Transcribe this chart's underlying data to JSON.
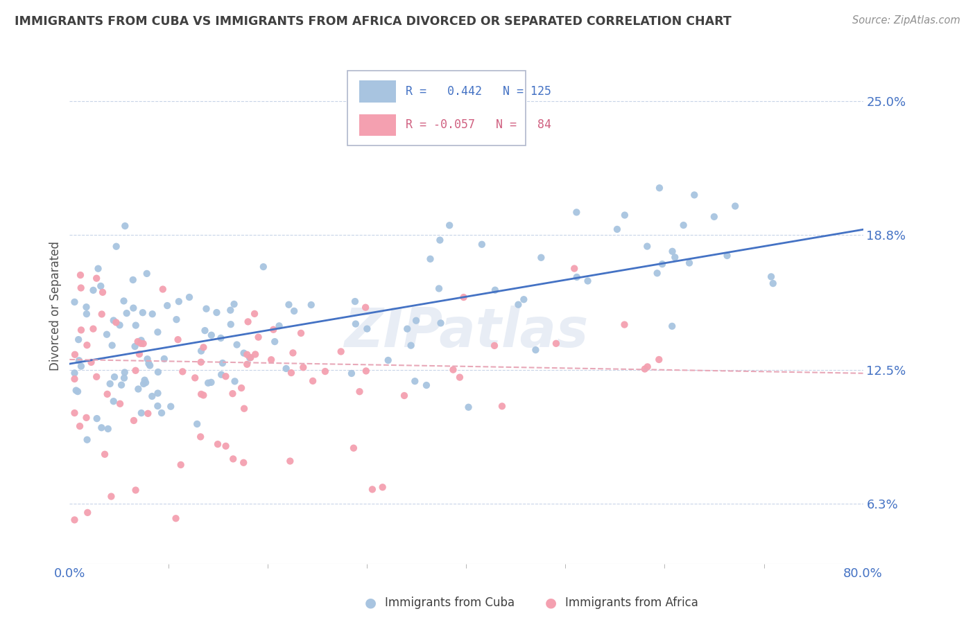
{
  "title": "IMMIGRANTS FROM CUBA VS IMMIGRANTS FROM AFRICA DIVORCED OR SEPARATED CORRELATION CHART",
  "source": "Source: ZipAtlas.com",
  "ylabel": "Divorced or Separated",
  "y_tick_vals": [
    6.3,
    12.5,
    18.8,
    25.0
  ],
  "y_tick_labels": [
    "6.3%",
    "12.5%",
    "18.8%",
    "25.0%"
  ],
  "xlim": [
    0.0,
    80.0
  ],
  "ylim": [
    3.5,
    27.5
  ],
  "blue_R": 0.442,
  "blue_N": 125,
  "pink_R": -0.057,
  "pink_N": 84,
  "blue_color": "#a8c4e0",
  "pink_color": "#f4a0b0",
  "blue_line_color": "#4472c4",
  "pink_line_color": "#e8a8b8",
  "title_color": "#404040",
  "source_color": "#909090",
  "label_color": "#4472c4",
  "grid_color": "#c8d4e8",
  "watermark": "ZIPatlas",
  "legend_label_blue": "Immigrants from Cuba",
  "legend_label_pink": "Immigrants from Africa",
  "blue_slope": 0.078,
  "blue_intercept": 12.8,
  "pink_slope": -0.008,
  "pink_intercept": 13.0
}
